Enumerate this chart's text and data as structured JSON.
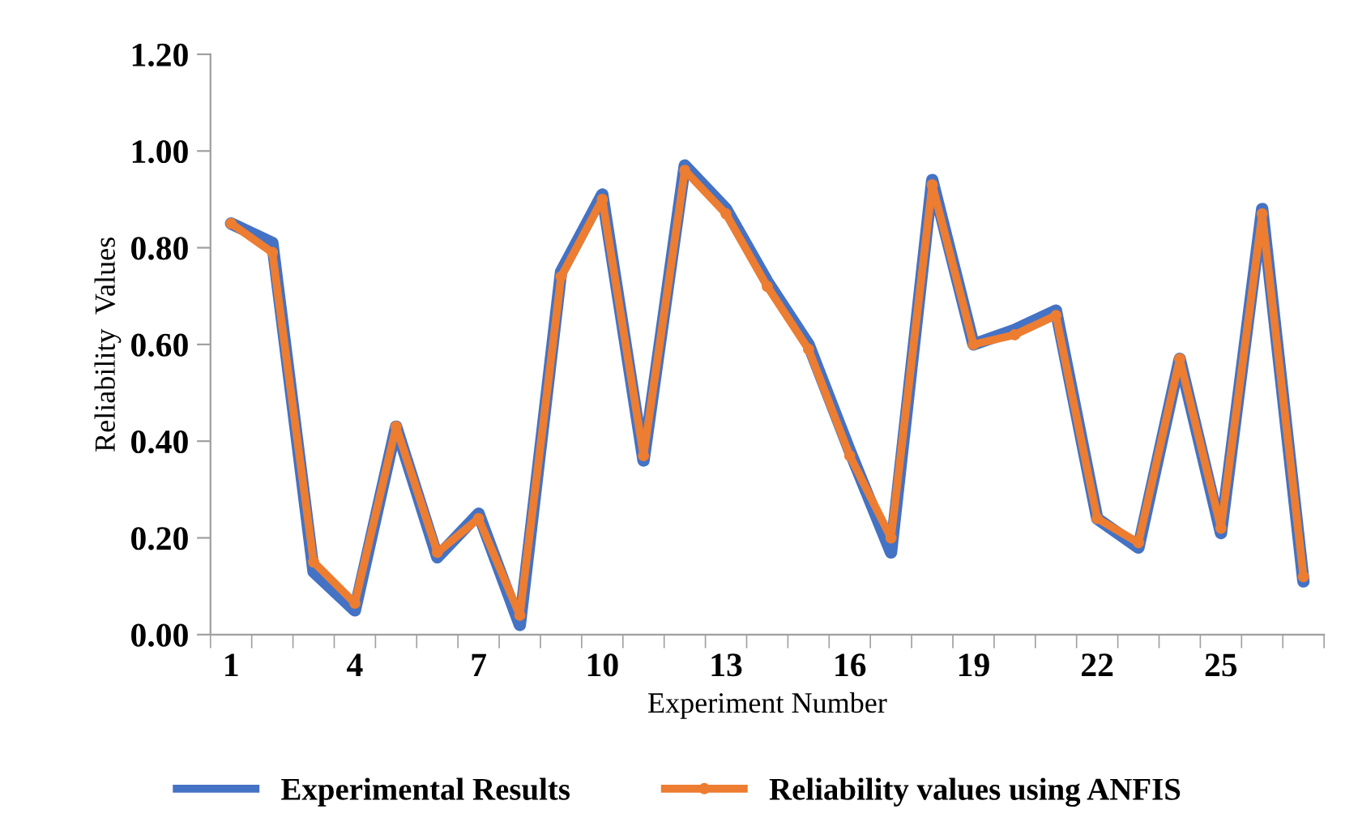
{
  "chart_data": {
    "type": "line",
    "xlabel": "Experiment Number",
    "ylabel": "Reliability  Values",
    "categories": [
      "1",
      null,
      null,
      "4",
      null,
      null,
      "7",
      null,
      null,
      "10",
      null,
      null,
      "13",
      null,
      null,
      "16",
      null,
      null,
      "19",
      null,
      null,
      "22",
      null,
      null,
      "25",
      null,
      null
    ],
    "series": [
      {
        "name": "Experimental Results",
        "color": "#4472c4",
        "marker": "none",
        "values": [
          0.85,
          0.81,
          0.13,
          0.05,
          0.43,
          0.16,
          0.25,
          0.02,
          0.75,
          0.91,
          0.36,
          0.97,
          0.88,
          0.73,
          0.6,
          0.38,
          0.17,
          0.94,
          0.6,
          0.63,
          0.67,
          0.24,
          0.18,
          0.57,
          0.21,
          0.88,
          0.11
        ]
      },
      {
        "name": "Reliability values using ANFIS",
        "color": "#ed7d31",
        "marker": "circle",
        "values": [
          0.85,
          0.79,
          0.15,
          0.065,
          0.43,
          0.17,
          0.24,
          0.04,
          0.74,
          0.9,
          0.37,
          0.96,
          0.87,
          0.72,
          0.59,
          0.37,
          0.2,
          0.93,
          0.6,
          0.62,
          0.66,
          0.24,
          0.19,
          0.57,
          0.22,
          0.87,
          0.12
        ]
      }
    ],
    "ylim": [
      0,
      1.2
    ],
    "yticks": [
      {
        "value": 0,
        "label": "0.00"
      },
      {
        "value": 0.2,
        "label": "0.20"
      },
      {
        "value": 0.4,
        "label": "0.40"
      },
      {
        "value": 0.6,
        "label": "0.60"
      },
      {
        "value": 0.8,
        "label": "0.80"
      },
      {
        "value": 1.0,
        "label": "1.00"
      },
      {
        "value": 1.2,
        "label": "1.20"
      }
    ],
    "grid": false,
    "legend": "bottom",
    "line_style": "solid"
  }
}
